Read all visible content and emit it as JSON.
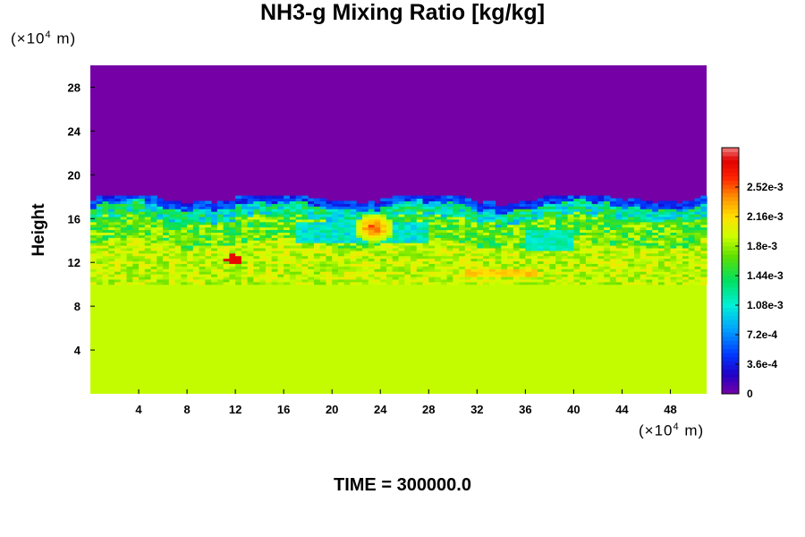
{
  "title": "NH3-g Mixing Ratio [kg/kg]",
  "y_unit": {
    "prefix": "(×10",
    "exp": "4",
    "suffix": " m)"
  },
  "x_unit": {
    "prefix": "(×10",
    "exp": "4",
    "suffix": " m)"
  },
  "footer": "TIME = 300000.0",
  "chart_data": {
    "type": "heatmap",
    "title": "NH3-g Mixing Ratio [kg/kg]",
    "ylabel": "Height",
    "xlabel": "",
    "x_unit": "×10^4 m",
    "y_unit": "×10^4 m",
    "xlim": [
      0,
      51
    ],
    "ylim": [
      0,
      30
    ],
    "x_ticks": [
      4,
      8,
      12,
      16,
      20,
      24,
      28,
      32,
      36,
      40,
      44,
      48
    ],
    "y_ticks": [
      4,
      8,
      12,
      16,
      20,
      24,
      28
    ],
    "colorbar": {
      "range": [
        0,
        0.003
      ],
      "tick_values": [
        0,
        0.00036,
        0.00072,
        0.00108,
        0.00144,
        0.0018,
        0.00216,
        0.00252
      ],
      "tick_labels": [
        "0",
        "3.6e-4",
        "7.2e-4",
        "1.08e-3",
        "1.44e-3",
        "1.8e-3",
        "2.16e-3",
        "2.52e-3"
      ]
    },
    "field_description_values": {
      "upper_region_value": 0,
      "lower_region_value": 0.0019,
      "transition_height": 17.5,
      "lower_uniform_below_height": 10
    },
    "time": "300000.0"
  }
}
